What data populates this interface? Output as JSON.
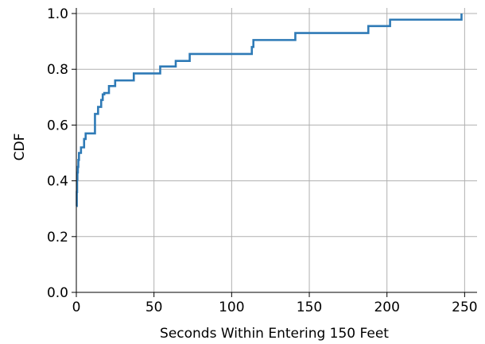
{
  "chart_data": {
    "type": "line",
    "title": "",
    "xlabel": "Seconds Within Entering 150 Feet",
    "ylabel": "CDF",
    "xlim": [
      0,
      258
    ],
    "ylim": [
      0.0,
      1.02
    ],
    "xticks": [
      0,
      50,
      100,
      150,
      200,
      250
    ],
    "yticks": [
      0.0,
      0.2,
      0.4,
      0.6,
      0.8,
      1.0
    ],
    "xtick_labels": [
      "0",
      "50",
      "100",
      "150",
      "200",
      "250"
    ],
    "ytick_labels": [
      "0.0",
      "0.2",
      "0.4",
      "0.6",
      "0.8",
      "1.0"
    ],
    "grid": true,
    "step": true,
    "line_color": "#2e7ab6",
    "grid_color": "#b0b0b0",
    "series": [
      {
        "x": [
          0,
          0.3,
          0.5,
          0.7,
          1,
          1.3,
          1.7,
          2,
          3,
          4,
          5,
          6,
          8,
          12,
          14,
          16,
          17,
          18,
          21,
          25,
          37,
          54,
          64,
          73,
          113,
          114,
          141,
          188,
          202,
          248
        ],
        "y": [
          0.31,
          0.36,
          0.405,
          0.43,
          0.45,
          0.475,
          0.5,
          0.5,
          0.52,
          0.52,
          0.55,
          0.57,
          0.57,
          0.64,
          0.665,
          0.69,
          0.71,
          0.715,
          0.74,
          0.76,
          0.785,
          0.81,
          0.83,
          0.855,
          0.88,
          0.905,
          0.93,
          0.955,
          0.978,
          1.0
        ]
      }
    ]
  }
}
